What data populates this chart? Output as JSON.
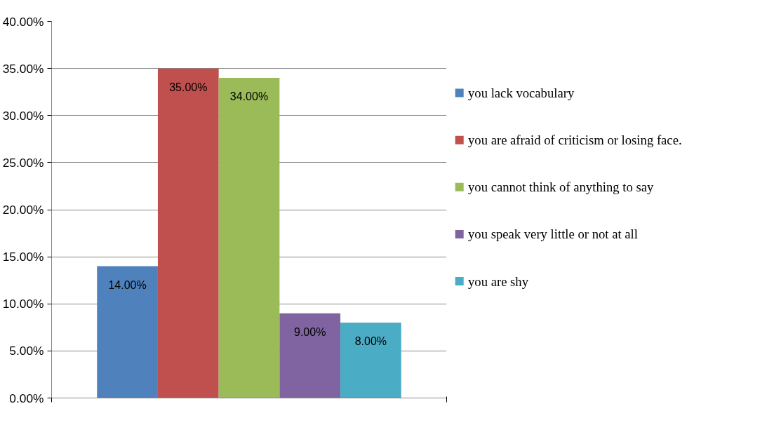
{
  "chart_data": {
    "type": "bar",
    "categories": [
      null
    ],
    "series": [
      {
        "name": "you lack vocabulary",
        "color": "#4f81bd",
        "values": [
          14
        ],
        "value_labels": [
          "14.00%"
        ]
      },
      {
        "name": "you are afraid of criticism or losing face.",
        "color": "#c0504d",
        "values": [
          35
        ],
        "value_labels": [
          "35.00%"
        ]
      },
      {
        "name": "you cannot think of anything to say",
        "color": "#9bbb59",
        "values": [
          34
        ],
        "value_labels": [
          "34.00%"
        ]
      },
      {
        "name": "you speak very little or not at all",
        "color": "#8064a2",
        "values": [
          9
        ],
        "value_labels": [
          "9.00%"
        ]
      },
      {
        "name": "you are shy",
        "color": "#4bacc6",
        "values": [
          8
        ],
        "value_labels": [
          "8.00%"
        ]
      }
    ],
    "ylim": [
      0,
      40
    ],
    "yticks": [
      {
        "value": 0,
        "label": "0.00%"
      },
      {
        "value": 5,
        "label": "5.00%"
      },
      {
        "value": 10,
        "label": "10.00%"
      },
      {
        "value": 15,
        "label": "15.00%"
      },
      {
        "value": 20,
        "label": "20.00%"
      },
      {
        "value": 25,
        "label": "25.00%"
      },
      {
        "value": 30,
        "label": "30.00%"
      },
      {
        "value": 35,
        "label": "35.00%"
      },
      {
        "value": 40,
        "label": "40.00%"
      }
    ],
    "grid": "y",
    "legend": "right"
  }
}
